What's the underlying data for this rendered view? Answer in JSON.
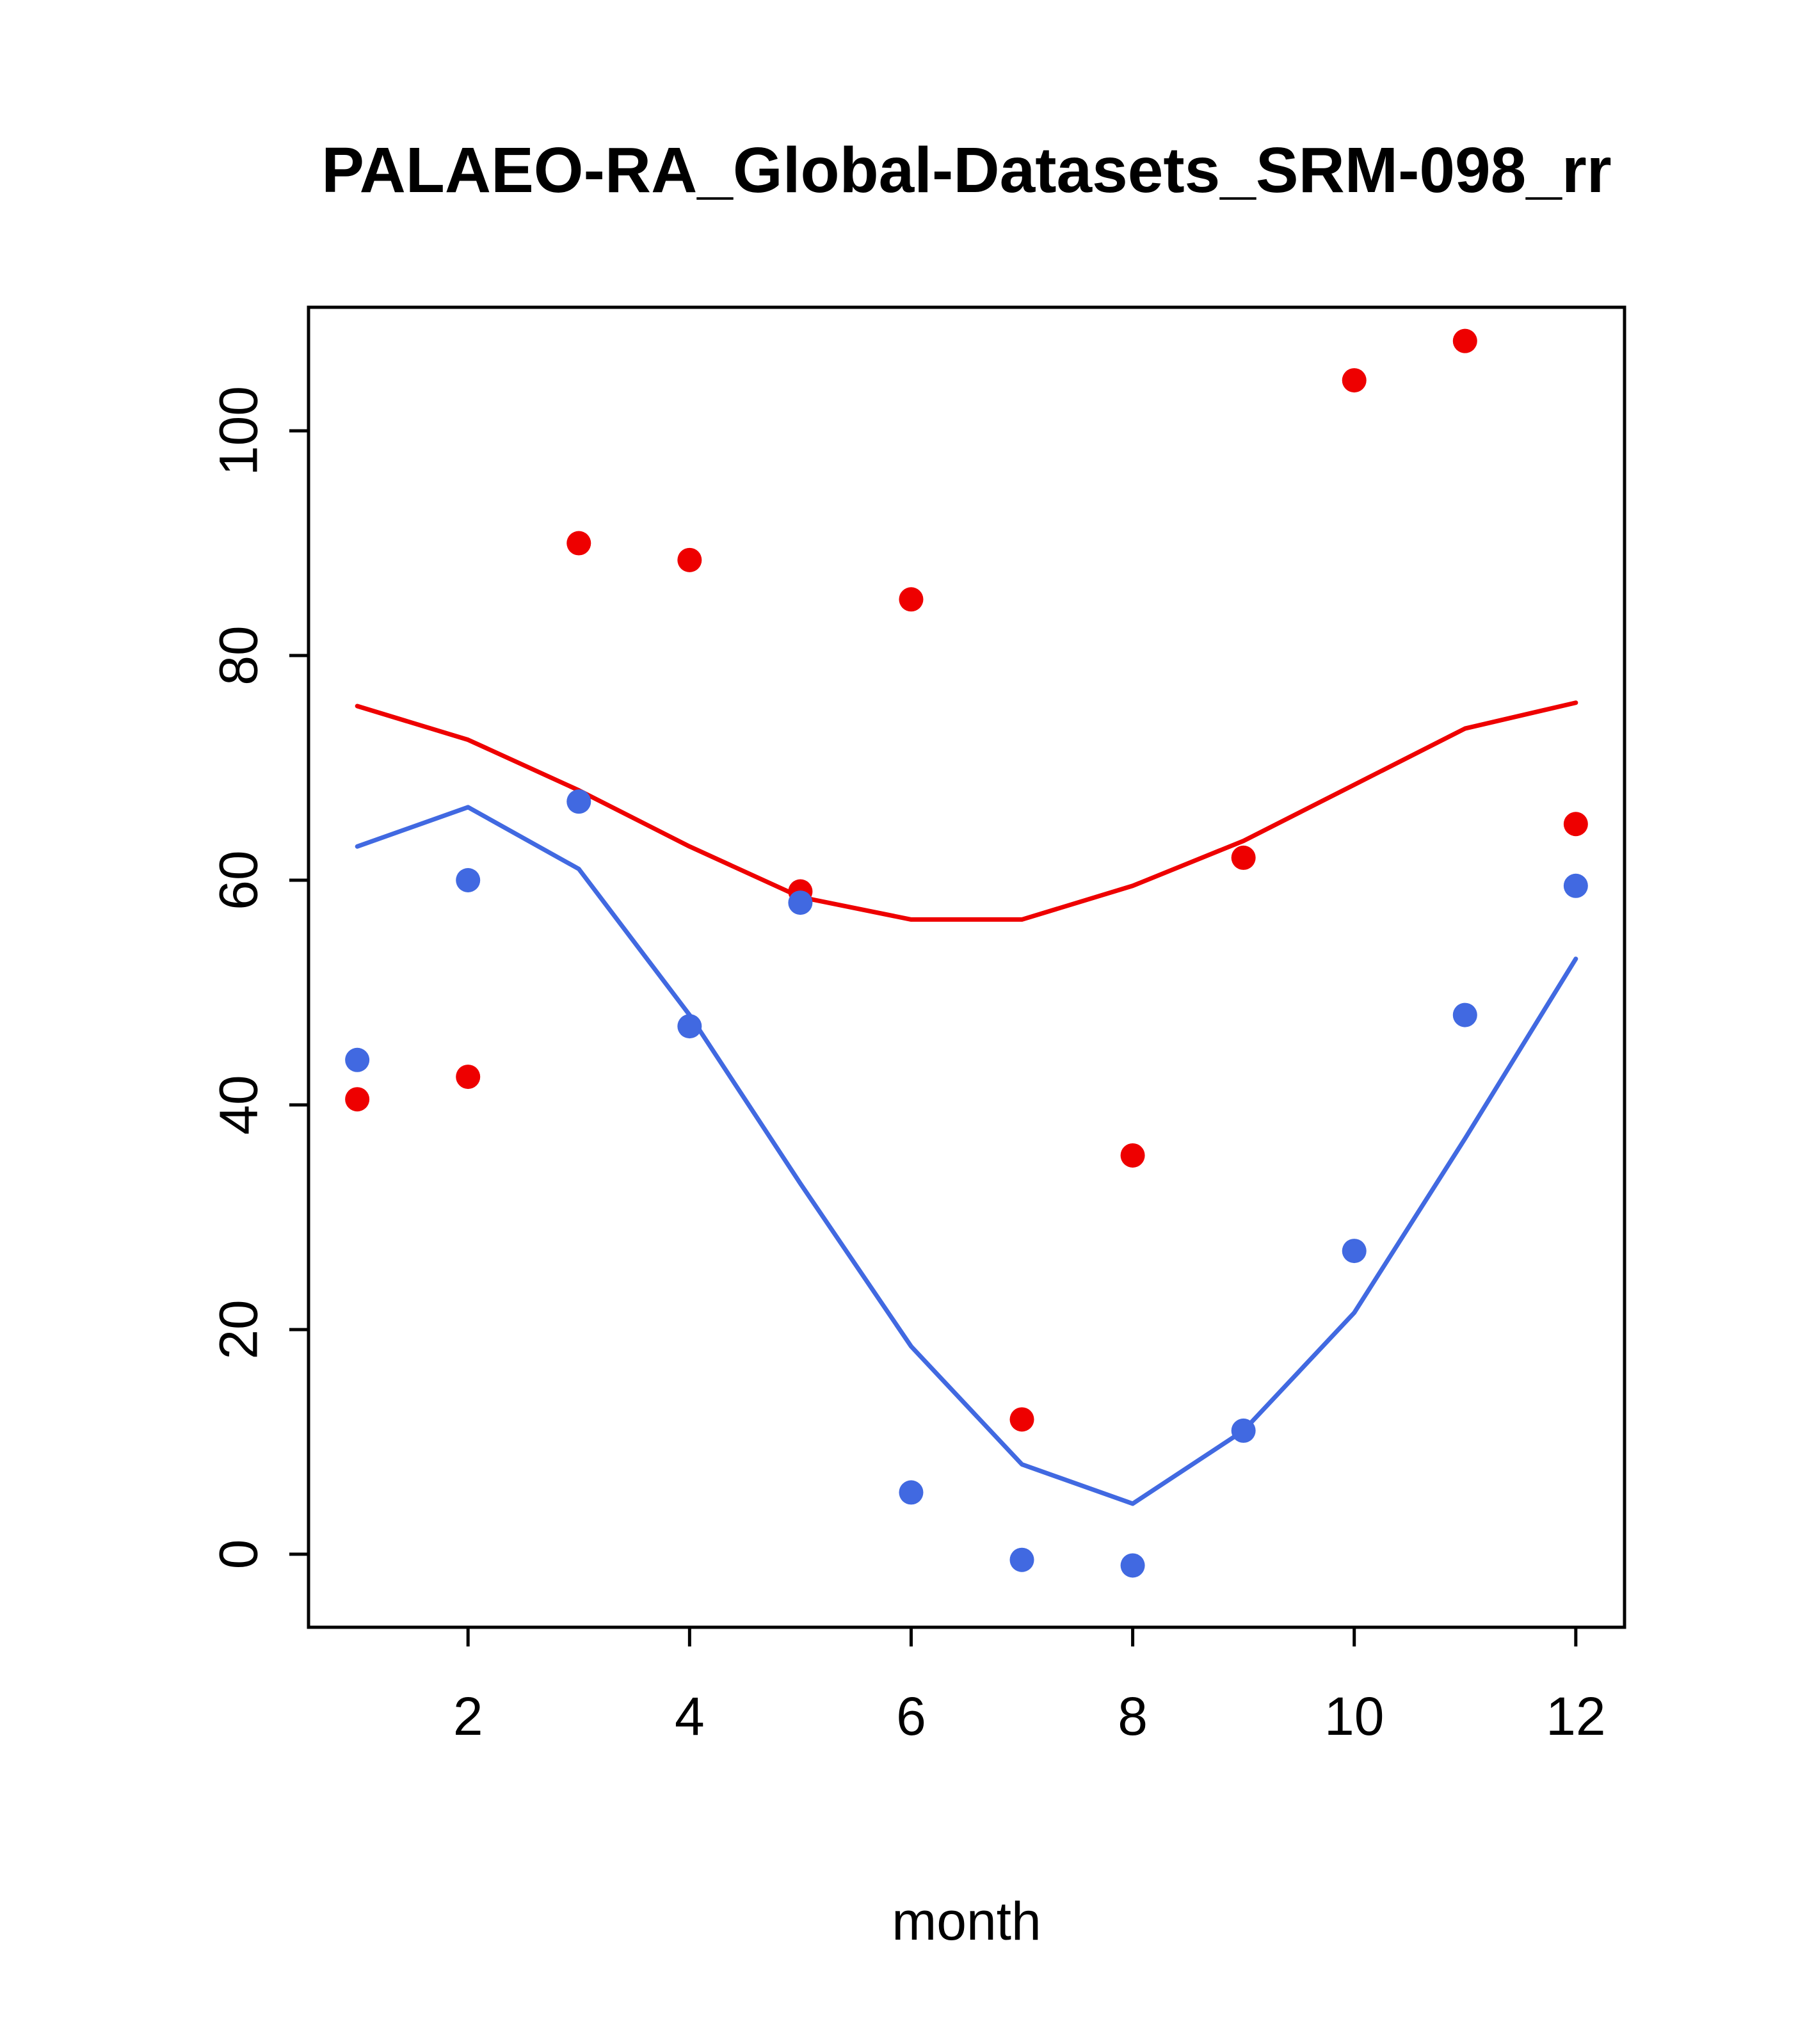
{
  "chart_data": {
    "type": "scatter",
    "title": "PALAEO-RA_Global-Datasets_SRM-098_rr",
    "xlabel": "month",
    "ylabel": "",
    "x": [
      1,
      2,
      3,
      4,
      5,
      6,
      7,
      8,
      9,
      10,
      11,
      12
    ],
    "xticks": [
      2,
      4,
      6,
      8,
      10,
      12
    ],
    "yticks": [
      0,
      20,
      40,
      60,
      80,
      100
    ],
    "xlim": [
      0.56,
      12.44
    ],
    "ylim": [
      -6.5,
      111
    ],
    "grid": false,
    "legend": "none",
    "colors": {
      "red": "#ee0000",
      "blue": "#4169e1"
    },
    "series": [
      {
        "name": "red-points",
        "style": "points",
        "color": "#ee0000",
        "values": [
          40.5,
          42.5,
          90,
          88.5,
          59,
          85,
          12,
          35.5,
          62,
          104.5,
          108,
          65
        ]
      },
      {
        "name": "blue-points",
        "style": "points",
        "color": "#4169e1",
        "values": [
          44,
          60,
          67,
          47,
          58,
          5.5,
          -0.5,
          -1,
          11,
          27,
          48,
          59.5
        ]
      },
      {
        "name": "red-smooth-line",
        "style": "line",
        "color": "#ee0000",
        "values": [
          75.5,
          72.5,
          68,
          63,
          58.5,
          56.5,
          56.5,
          59.5,
          63.5,
          68.5,
          73.5,
          75.8
        ]
      },
      {
        "name": "blue-smooth-line",
        "style": "line",
        "color": "#4169e1",
        "values": [
          63,
          66.5,
          61,
          48,
          33,
          18.5,
          8,
          4.5,
          11,
          21.5,
          37,
          53
        ]
      }
    ]
  }
}
